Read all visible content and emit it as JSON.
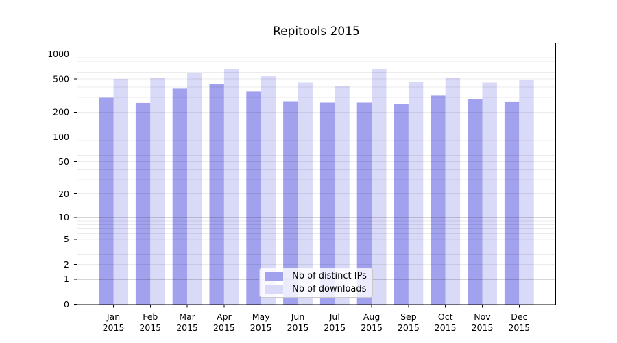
{
  "chart_data": {
    "type": "bar",
    "title": "Repitools 2015",
    "categories": [
      "Jan 2015",
      "Feb 2015",
      "Mar 2015",
      "Apr 2015",
      "May 2015",
      "Jun 2015",
      "Jul 2015",
      "Aug 2015",
      "Sep 2015",
      "Oct 2015",
      "Nov 2015",
      "Dec 2015"
    ],
    "series": [
      {
        "name": "Nb of distinct IPs",
        "color": "#a1a1ee",
        "values": [
          297,
          258,
          381,
          435,
          353,
          270,
          260,
          260,
          249,
          315,
          287,
          268
        ]
      },
      {
        "name": "Nb of downloads",
        "color": "#d9d9f8",
        "values": [
          500,
          512,
          585,
          655,
          539,
          451,
          410,
          660,
          457,
          512,
          451,
          487
        ]
      }
    ],
    "xlabel": "",
    "ylabel": "",
    "yscale": "log10(value+1)",
    "yticks": [
      0,
      1,
      2,
      5,
      10,
      20,
      50,
      100,
      200,
      500,
      1000
    ],
    "ylim": [
      0,
      1340
    ],
    "grid": "on",
    "grid_major_at": [
      1,
      10,
      100,
      1000
    ],
    "legend_position": "lower center"
  },
  "colors": {
    "background": "#ffffff",
    "spine": "#000000",
    "text": "#000000",
    "grid_major": "rgba(0,0,0,0.32)",
    "grid_minor": "rgba(0,0,0,0.08)",
    "legend_border": "#c9c9c9"
  }
}
